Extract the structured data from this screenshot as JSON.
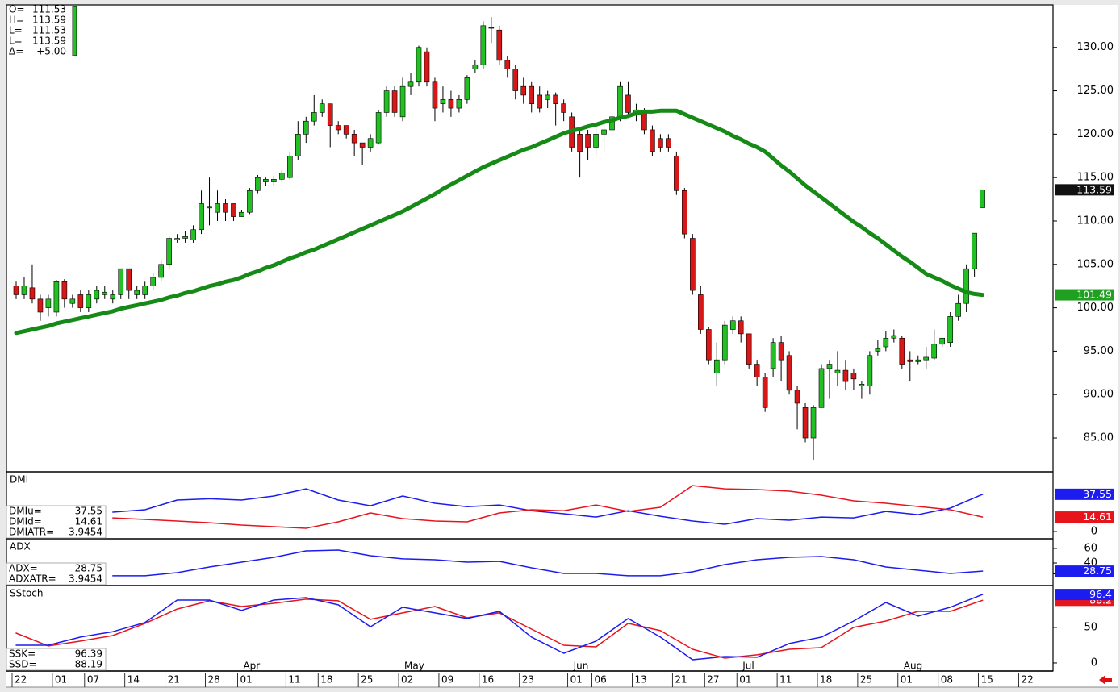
{
  "chart_data": [
    {
      "type": "candlestick",
      "categories": [
        "22",
        null,
        null,
        null,
        null,
        "01",
        null,
        null,
        null,
        "07",
        null,
        null,
        null,
        null,
        "14",
        null,
        null,
        null,
        null,
        "21",
        null,
        null,
        null,
        null,
        "28",
        null,
        null,
        null,
        "01",
        null,
        null,
        null,
        null,
        null,
        "11",
        null,
        null,
        null,
        "18",
        null,
        null,
        null,
        null,
        "25",
        null,
        null,
        null,
        null,
        "02",
        null,
        null,
        null,
        null,
        "09",
        null,
        null,
        null,
        null,
        "16",
        null,
        null,
        null,
        null,
        "23",
        null,
        null,
        null,
        null,
        null,
        "01",
        null,
        null,
        "06",
        null,
        null,
        null,
        null,
        "13",
        null,
        null,
        null,
        null,
        "21",
        null,
        null,
        null,
        "27",
        null,
        null,
        null,
        "01",
        null,
        null,
        null,
        null,
        "11",
        null,
        null,
        null,
        null,
        "18",
        null,
        null,
        null,
        null,
        "25",
        null,
        null,
        null,
        null,
        "01",
        null,
        null,
        null,
        null,
        "08",
        null,
        null,
        null,
        null,
        "15",
        null,
        null,
        null,
        null,
        "22",
        null,
        null
      ],
      "month_labels": [
        {
          "value": 28,
          "label": "Apr"
        },
        {
          "value": 48,
          "label": "May"
        },
        {
          "value": 69,
          "label": "Jun"
        },
        {
          "value": 90,
          "label": "Jul"
        },
        {
          "value": 110,
          "label": "Aug"
        }
      ],
      "readout": [
        {
          "label": "O=",
          "value": 111.53
        },
        {
          "label": "H=",
          "value": 113.59
        },
        {
          "label": "L=",
          "value": 111.53
        },
        {
          "label": "L=",
          "value": 113.59
        },
        {
          "label": "Δ=",
          "value": 5,
          "value_label": "+5.00"
        }
      ],
      "open": [
        102.5,
        101.5,
        102.3,
        101,
        100,
        99.5,
        103,
        100.5,
        101.5,
        100,
        101,
        101.5,
        101,
        101.5,
        104.5,
        101.5,
        101.5,
        102.5,
        103.5,
        105,
        107.8,
        108,
        107.8,
        109,
        111.5,
        111,
        112,
        112,
        110.5,
        111,
        113.5,
        114.5,
        114.5,
        114.8,
        115,
        117.5,
        120,
        121.5,
        122.5,
        123.5,
        121,
        121,
        120,
        119,
        118.5,
        119,
        122.5,
        125,
        122,
        125.5,
        126,
        129.5,
        126,
        123.5,
        124,
        123,
        124,
        127.5,
        128,
        132.3,
        132,
        128.5,
        127.5,
        125.5,
        125.5,
        124.5,
        124,
        124.5,
        123.5,
        122,
        120,
        120,
        118.5,
        120,
        120.5,
        122,
        124.5,
        122.5,
        122.5,
        120.5,
        119.5,
        119.5,
        117.5,
        113.5,
        108,
        101.5,
        97.5,
        92.5,
        94,
        97.5,
        98.5,
        97,
        93.5,
        92,
        93,
        96,
        94.5,
        90.5,
        88.5,
        85,
        88.5,
        93,
        92.5,
        92.8,
        92.5,
        91,
        91,
        95,
        95.5,
        96.5,
        96.5,
        94,
        93.8,
        94,
        94.2,
        95.8,
        96,
        99,
        100.5,
        104.5,
        111.53,
        null,
        null,
        null,
        null,
        null,
        null,
        null
      ],
      "high": [
        103,
        103.5,
        105,
        101.5,
        101.5,
        103.2,
        103.3,
        101.5,
        102,
        102,
        102.5,
        102.5,
        102,
        104.5,
        104.5,
        102.5,
        103,
        104,
        105.5,
        108.2,
        108.5,
        108.8,
        109.5,
        113.5,
        115,
        113.5,
        112.5,
        112,
        111.3,
        113.8,
        115.3,
        115,
        115.2,
        115.8,
        118,
        121.5,
        122,
        124.5,
        124,
        123.5,
        121.5,
        121,
        120.5,
        119,
        120,
        122.8,
        125.5,
        125.5,
        126.5,
        127,
        130.2,
        130,
        126.5,
        125.5,
        125,
        124.5,
        126.8,
        128.5,
        133,
        133.5,
        132.5,
        129,
        128,
        126.5,
        126,
        125.5,
        125,
        124.8,
        124,
        122.5,
        120.5,
        120.5,
        120.8,
        121.5,
        122.5,
        126,
        126,
        123.5,
        123,
        121,
        120,
        120,
        118,
        113.8,
        108.5,
        102.5,
        97.8,
        96,
        98.5,
        99,
        99,
        97,
        94,
        92.5,
        96.5,
        96.8,
        95,
        91,
        89,
        88.8,
        93.5,
        94,
        95,
        94,
        93,
        91.5,
        95,
        96.3,
        97.3,
        97.5,
        96.8,
        95,
        94.5,
        95.5,
        97.5,
        96.5,
        99.5,
        101.5,
        105,
        108.6,
        113.59,
        null,
        null,
        null,
        null,
        null,
        null,
        null
      ],
      "low": [
        101,
        101,
        100.5,
        98.5,
        99,
        99,
        100,
        100,
        99.5,
        99.5,
        100.5,
        101,
        100.5,
        101,
        101,
        101,
        101,
        102,
        103,
        104.5,
        107.5,
        107.5,
        107.5,
        108.5,
        109.5,
        110,
        110,
        110,
        110.5,
        110.8,
        113.2,
        114,
        114,
        114.5,
        114.8,
        117,
        119,
        121,
        122,
        118.5,
        120,
        119.5,
        117.5,
        116.5,
        118,
        118.8,
        122,
        122,
        121.5,
        124.5,
        125.5,
        125.5,
        121.5,
        122.5,
        122,
        122.5,
        123.5,
        127,
        127.5,
        130.5,
        128,
        126.5,
        124,
        123.5,
        122.5,
        122.5,
        123,
        121,
        121.5,
        118,
        115,
        117,
        117.5,
        118,
        120.5,
        121.5,
        122,
        121.5,
        120,
        117.5,
        118,
        118,
        113,
        108,
        101.5,
        97,
        93.5,
        91,
        93.5,
        97,
        96,
        93,
        91,
        88,
        92,
        91.5,
        90,
        86,
        84.5,
        82.5,
        88.5,
        89.5,
        91,
        90.5,
        90.5,
        89.5,
        90,
        94.5,
        95,
        96,
        93,
        91.5,
        93.5,
        93,
        94,
        95.5,
        95.5,
        98.5,
        99.5,
        103.5,
        111.53,
        null,
        null,
        null,
        null,
        null,
        null,
        null
      ],
      "close": [
        101.5,
        102.5,
        101,
        99.5,
        101,
        103,
        101,
        101,
        100,
        101.5,
        102,
        101.8,
        101.5,
        104.5,
        102,
        102,
        102.5,
        103.5,
        105,
        108,
        108,
        108.2,
        109,
        112,
        111.6,
        112,
        111,
        110.5,
        111,
        113.5,
        115,
        114.8,
        114.8,
        115.5,
        117.5,
        120,
        121.5,
        122.5,
        123.5,
        121,
        120.5,
        120,
        119,
        118.5,
        119.5,
        122.5,
        125,
        122.5,
        125.5,
        126,
        130,
        126,
        123,
        124,
        123,
        124,
        126.5,
        128,
        132.5,
        132.2,
        128.5,
        127.5,
        125,
        124.5,
        123.5,
        123,
        124.5,
        123.5,
        122.5,
        118.5,
        118,
        118.5,
        120,
        120.5,
        122,
        125.5,
        122.5,
        122.8,
        120.5,
        118,
        118.5,
        118.5,
        113.5,
        108.5,
        102,
        97.5,
        94,
        94,
        98,
        98.5,
        97,
        93.5,
        92,
        88.5,
        96,
        94,
        90.5,
        89,
        85,
        88.5,
        93,
        93.5,
        92.8,
        91.5,
        91.8,
        91.2,
        94.5,
        95.3,
        96.5,
        96.8,
        93.5,
        93.8,
        94,
        94.3,
        95.8,
        96.5,
        99,
        100.5,
        104.5,
        108.59,
        113.59,
        null,
        null,
        null,
        null,
        null,
        null,
        null
      ],
      "up_color": "#22c022",
      "down_color": "#d81818",
      "series": [
        {
          "color": "#168a16",
          "values": [
            97.1,
            97.3,
            97.5,
            97.7,
            97.9,
            98.2,
            98.4,
            98.6,
            98.8,
            99.0,
            99.2,
            99.4,
            99.6,
            99.9,
            100.1,
            100.3,
            100.5,
            100.7,
            100.9,
            101.2,
            101.4,
            101.7,
            101.9,
            102.2,
            102.5,
            102.7,
            103.0,
            103.2,
            103.5,
            103.9,
            104.2,
            104.6,
            104.9,
            105.3,
            105.7,
            106.0,
            106.4,
            106.7,
            107.1,
            107.5,
            107.9,
            108.3,
            108.7,
            109.1,
            109.5,
            109.9,
            110.3,
            110.7,
            111.1,
            111.6,
            112.1,
            112.6,
            113.1,
            113.7,
            114.2,
            114.7,
            115.2,
            115.7,
            116.2,
            116.6,
            117.0,
            117.4,
            117.8,
            118.2,
            118.5,
            118.9,
            119.3,
            119.7,
            120.1,
            120.4,
            120.6,
            120.9,
            121.1,
            121.4,
            121.6,
            121.9,
            122.1,
            122.4,
            122.6,
            122.6,
            122.7,
            122.7,
            122.7,
            122.3,
            121.9,
            121.5,
            121.1,
            120.7,
            120.3,
            119.8,
            119.4,
            118.9,
            118.5,
            118.0,
            117.2,
            116.4,
            115.7,
            114.9,
            114.1,
            113.4,
            112.7,
            112.0,
            111.3,
            110.6,
            109.9,
            109.3,
            108.6,
            108.0,
            107.3,
            106.6,
            105.9,
            105.3,
            104.6,
            103.9,
            103.5,
            103.1,
            102.6,
            102.2,
            101.8,
            101.6,
            101.49,
            null,
            null,
            null,
            null,
            null,
            null,
            null
          ]
        }
      ],
      "ylim": [
        81.1,
        134.9
      ],
      "yticks": [
        {
          "value": 85,
          "label": "85.00"
        },
        {
          "value": 90,
          "label": "90.00"
        },
        {
          "value": 95,
          "label": "95.00"
        },
        {
          "value": 100,
          "label": "100.00"
        },
        {
          "value": 105,
          "label": "105.00"
        },
        {
          "value": 110,
          "label": "110.00"
        },
        {
          "value": 115,
          "label": "115.00"
        },
        {
          "value": 120,
          "label": "120.00"
        },
        {
          "value": 125,
          "label": "125.00"
        },
        {
          "value": 130,
          "label": "130.00"
        }
      ],
      "tags": [
        {
          "value": 113.59,
          "color": "#111111"
        },
        {
          "value": 101.49,
          "color": "#20a020"
        }
      ]
    },
    {
      "type": "line",
      "title": "DMI",
      "x": [
        12,
        16,
        20,
        24,
        28,
        32,
        36,
        40,
        44,
        48,
        52,
        56,
        60,
        64,
        68,
        72,
        76,
        80,
        84,
        88,
        92,
        96,
        100,
        104,
        108,
        112,
        116,
        120
      ],
      "series": [
        {
          "color": "#1c1cf0",
          "values": [
            19.5,
            22,
            31.7,
            33,
            31.7,
            35.8,
            43,
            31.7,
            26,
            35.8,
            28.5,
            25,
            26.8,
            21,
            17.9,
            14.6,
            21,
            15.4,
            10.6,
            7.3,
            13,
            11.4,
            14.6,
            13.8,
            20.3,
            17,
            23.6,
            37.55
          ]
        },
        {
          "color": "#e8141c",
          "values": [
            13.8,
            12.2,
            10.6,
            8.9,
            6.5,
            4.9,
            3.3,
            9.8,
            18.7,
            13,
            10.6,
            9.8,
            18.7,
            22,
            21,
            26.8,
            20.3,
            24.4,
            46.3,
            43,
            42.3,
            40.7,
            36.6,
            30.9,
            28.5,
            25.2,
            22,
            14.61
          ]
        }
      ],
      "ylim": [
        -7.3,
        60.2
      ],
      "yticks": [
        0
      ],
      "readout": [
        {
          "label": "DMIu=",
          "value": 37.55
        },
        {
          "label": "DMId=",
          "value": 14.61
        },
        {
          "label": "DMIATR=",
          "value": 3.9454
        }
      ],
      "tags": [
        {
          "value": 37.55,
          "color": "#1c1cf0"
        },
        {
          "value": 14.61,
          "color": "#e8141c"
        }
      ]
    },
    {
      "type": "line",
      "title": "ADX",
      "x": [
        12,
        16,
        20,
        24,
        28,
        32,
        36,
        40,
        44,
        48,
        52,
        56,
        60,
        64,
        68,
        72,
        76,
        80,
        84,
        88,
        92,
        96,
        100,
        104,
        108,
        112,
        116,
        120
      ],
      "series": [
        {
          "color": "#1c1cf0",
          "values": [
            22.3,
            22.3,
            26.7,
            34.4,
            41.1,
            47.8,
            56.7,
            57.8,
            50,
            45.6,
            44.4,
            41.1,
            42.2,
            33.3,
            25.6,
            25.6,
            22.3,
            22.3,
            27.8,
            37.8,
            44.4,
            47.8,
            48.9,
            44.4,
            34.4,
            30,
            25.6,
            28.75
          ]
        }
      ],
      "ylim": [
        8.9,
        73.3
      ],
      "yticks": [
        60,
        40,
        25
      ],
      "readout": [
        {
          "label": "ADX=",
          "value": 28.75
        },
        {
          "label": "ADXATR=",
          "value": 3.9454
        }
      ],
      "tags": [
        {
          "value": 28.75,
          "color": "#1c1cf0"
        }
      ]
    },
    {
      "type": "line",
      "title": "SStoch",
      "x": [
        0,
        4,
        8,
        12,
        16,
        20,
        24,
        28,
        32,
        36,
        40,
        44,
        48,
        52,
        56,
        60,
        64,
        68,
        72,
        76,
        80,
        84,
        88,
        92,
        96,
        100,
        104,
        108,
        112,
        116,
        120
      ],
      "series": [
        {
          "color": "#e8141c",
          "values": [
            42,
            23.9,
            30.7,
            38.6,
            55.7,
            76,
            87.5,
            79.5,
            84,
            89.8,
            87.5,
            61.4,
            70.5,
            79.5,
            63.6,
            70.5,
            47.7,
            25,
            22.7,
            55.7,
            45.5,
            19.3,
            6.8,
            11.4,
            19.3,
            21.6,
            50,
            59,
            72.7,
            72.7,
            88.19
          ]
        },
        {
          "color": "#1c1cf0",
          "values": [
            25,
            25,
            36.4,
            44,
            57,
            88.6,
            88.6,
            74,
            88.6,
            92,
            81.8,
            51,
            78.4,
            70.5,
            62.5,
            72.7,
            36.4,
            13.6,
            30.7,
            62.5,
            36.4,
            4.5,
            9,
            8,
            27.3,
            36.4,
            59,
            85.2,
            65.9,
            78.4,
            96.39
          ]
        }
      ],
      "ylim": [
        -11.4,
        109
      ],
      "yticks": [
        50,
        0
      ],
      "readout": [
        {
          "label": "SSK=",
          "value": 96.39
        },
        {
          "label": "SSD=",
          "value": 88.19
        }
      ],
      "tags": [
        {
          "value": 88.2,
          "color": "#e8141c"
        },
        {
          "value": 96.4,
          "color": "#1c1cf0"
        }
      ]
    }
  ]
}
